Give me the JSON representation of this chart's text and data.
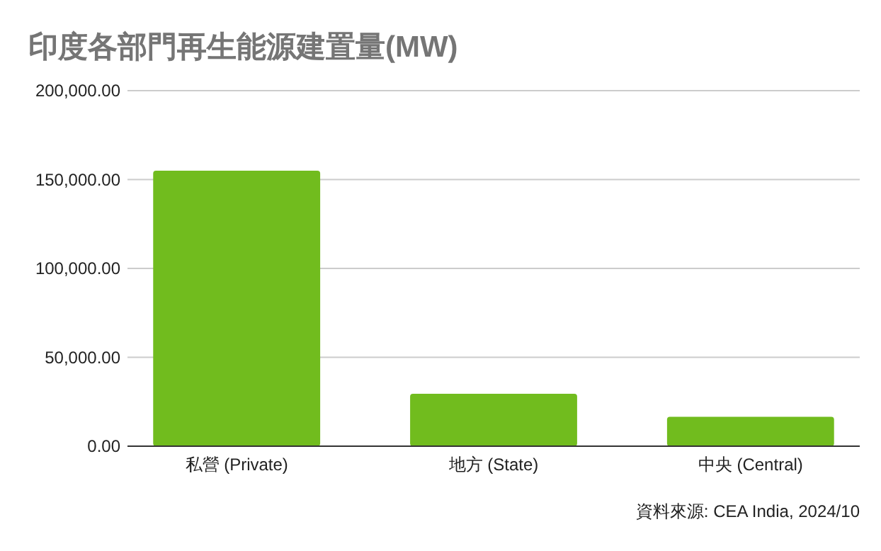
{
  "chart_data": {
    "type": "bar",
    "title": "印度各部門再生能源建置量(MW)",
    "categories": [
      "私營 (Private)",
      "地方 (State)",
      "中央 (Central)"
    ],
    "values": [
      155000,
      29500,
      16500
    ],
    "color": "#71bc1e",
    "ylim": [
      0,
      200000
    ],
    "yticks": [
      {
        "value": 0,
        "label": "0.00"
      },
      {
        "value": 50000,
        "label": "50,000.00"
      },
      {
        "value": 100000,
        "label": "100,000.00"
      },
      {
        "value": 150000,
        "label": "150,000.00"
      },
      {
        "value": 200000,
        "label": "200,000.00"
      }
    ],
    "grid": "y",
    "annotations": [
      "資料來源: CEA India, 2024/10"
    ]
  }
}
